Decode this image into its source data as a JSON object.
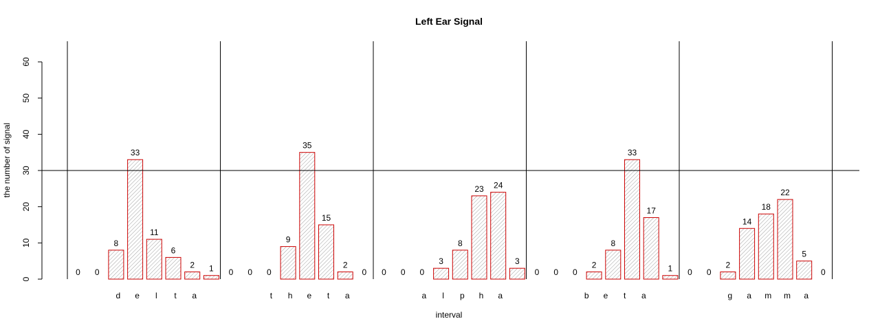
{
  "chart_data": {
    "type": "bar",
    "title": "Left Ear Signal",
    "xlabel": "interval",
    "ylabel": "the number of signal",
    "ylim": [
      0,
      60
    ],
    "yticks": [
      0,
      10,
      20,
      30,
      40,
      50,
      60
    ],
    "reference_line": 30,
    "grid": false,
    "bar_color": "#cc0000",
    "hatch_color": "#a0a0a0",
    "groups": [
      {
        "name": "delta",
        "letters": [
          "d",
          "e",
          "l",
          "t",
          "a"
        ],
        "values": [
          0,
          0,
          8,
          33,
          11,
          6,
          2,
          1
        ]
      },
      {
        "name": "theta",
        "letters": [
          "t",
          "h",
          "e",
          "t",
          "a"
        ],
        "values": [
          0,
          0,
          0,
          9,
          35,
          15,
          2,
          0
        ]
      },
      {
        "name": "alpha",
        "letters": [
          "a",
          "l",
          "p",
          "h",
          "a"
        ],
        "values": [
          0,
          0,
          0,
          3,
          8,
          23,
          24,
          3
        ]
      },
      {
        "name": "beta",
        "letters": [
          "b",
          "e",
          "t",
          "a"
        ],
        "values": [
          0,
          0,
          0,
          2,
          8,
          33,
          17,
          1
        ]
      },
      {
        "name": "gamma",
        "letters": [
          "g",
          "a",
          "m",
          "m",
          "a"
        ],
        "values": [
          0,
          0,
          2,
          14,
          18,
          22,
          5,
          0
        ]
      }
    ]
  }
}
